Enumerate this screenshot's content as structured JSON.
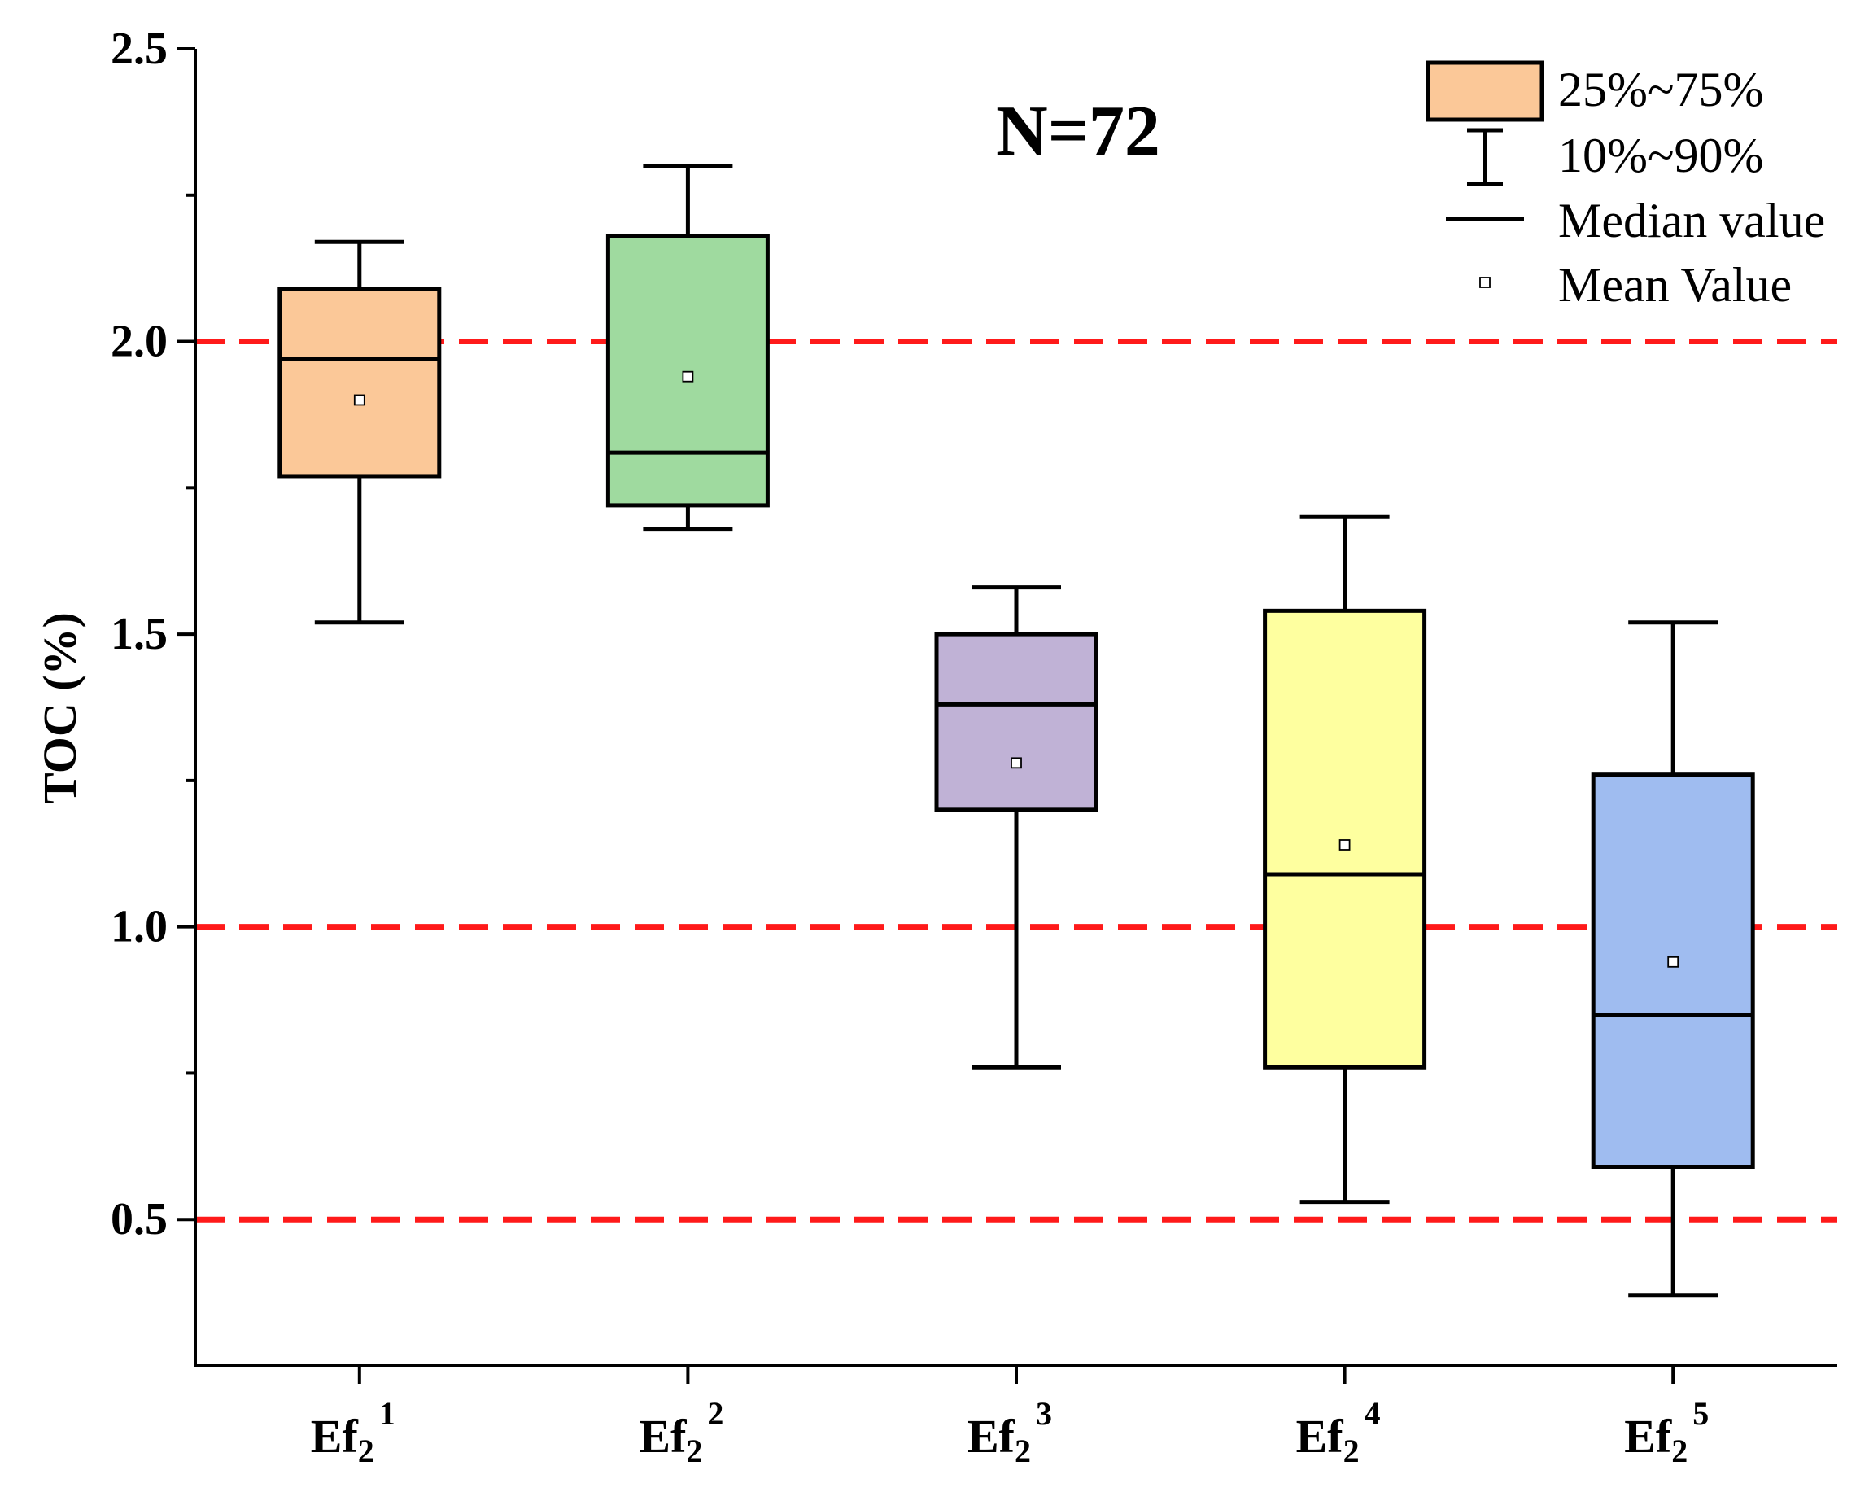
{
  "chart_data": {
    "type": "box",
    "title": "",
    "ylabel": "TOC (%)",
    "xlabel": "",
    "ylim": [
      0.25,
      2.5
    ],
    "yticks": [
      0.5,
      1.0,
      1.5,
      2.0,
      2.5
    ],
    "ytick_labels": [
      "0.5",
      "1.0",
      "1.5",
      "2.0",
      "2.5"
    ],
    "annotation": "N=72",
    "reference_lines": [
      {
        "y": 2.0,
        "color": "#ff1a1a",
        "style": "dashed"
      },
      {
        "y": 1.0,
        "color": "#ff1a1a",
        "style": "dashed"
      },
      {
        "y": 0.5,
        "color": "#ff1a1a",
        "style": "dashed"
      }
    ],
    "categories": [
      {
        "base": "Ef",
        "sub": "2",
        "sup": "1"
      },
      {
        "base": "Ef",
        "sub": "2",
        "sup": "2"
      },
      {
        "base": "Ef",
        "sub": "2",
        "sup": "3"
      },
      {
        "base": "Ef",
        "sub": "2",
        "sup": "4"
      },
      {
        "base": "Ef",
        "sub": "2",
        "sup": "5"
      }
    ],
    "boxes": [
      {
        "p10": 1.52,
        "q1": 1.77,
        "median": 1.97,
        "q3": 2.09,
        "p90": 2.17,
        "mean": 1.9,
        "color": "#fbc898"
      },
      {
        "p10": 1.68,
        "q1": 1.72,
        "median": 1.81,
        "q3": 2.18,
        "p90": 2.3,
        "mean": 1.94,
        "color": "#9fda9f"
      },
      {
        "p10": 0.76,
        "q1": 1.2,
        "median": 1.38,
        "q3": 1.5,
        "p90": 1.58,
        "mean": 1.28,
        "color": "#c0b2d6"
      },
      {
        "p10": 0.53,
        "q1": 0.76,
        "median": 1.09,
        "q3": 1.54,
        "p90": 1.7,
        "mean": 1.14,
        "color": "#feff9f"
      },
      {
        "p10": 0.37,
        "q1": 0.59,
        "median": 0.85,
        "q3": 1.26,
        "p90": 1.52,
        "mean": 0.94,
        "color": "#9fbcf0"
      }
    ],
    "legend": {
      "position": "top-right",
      "entries": [
        {
          "kind": "box",
          "label": "25%~75%"
        },
        {
          "kind": "whisker",
          "label": "10%~90%"
        },
        {
          "kind": "median",
          "label": "Median value"
        },
        {
          "kind": "mean",
          "label": "Mean Value"
        }
      ]
    }
  }
}
